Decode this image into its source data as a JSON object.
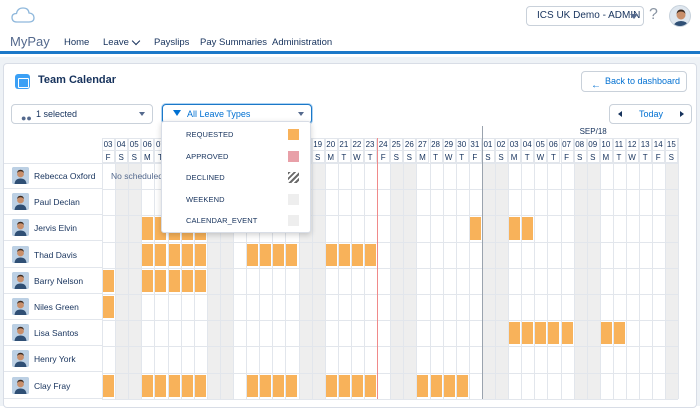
{
  "topbar": {
    "org_selector": "ICS UK Demo - ADMIN",
    "help": "?"
  },
  "navbar": {
    "brand": "MyPay",
    "items": [
      "Home",
      "Leave",
      "Payslips",
      "Pay Summaries",
      "Administration"
    ]
  },
  "card": {
    "title": "Team Calendar",
    "back_button": "Back to dashboard",
    "people_filter": "1 selected",
    "leave_filter": "All Leave Types",
    "today_button": "Today"
  },
  "calendar": {
    "month_label": "SEP/18",
    "days": [
      {
        "d": "03",
        "w": "F"
      },
      {
        "d": "04",
        "w": "S"
      },
      {
        "d": "05",
        "w": "S"
      },
      {
        "d": "06",
        "w": "M"
      },
      {
        "d": "07",
        "w": "T"
      },
      {
        "d": "08",
        "w": "W"
      },
      {
        "d": "09",
        "w": "T"
      },
      {
        "d": "10",
        "w": "F"
      },
      {
        "d": "11",
        "w": "S"
      },
      {
        "d": "12",
        "w": "S"
      },
      {
        "d": "13",
        "w": "M"
      },
      {
        "d": "14",
        "w": "T"
      },
      {
        "d": "15",
        "w": "W"
      },
      {
        "d": "16",
        "w": "T"
      },
      {
        "d": "17",
        "w": "F"
      },
      {
        "d": "18",
        "w": "S"
      },
      {
        "d": "19",
        "w": "S"
      },
      {
        "d": "20",
        "w": "M"
      },
      {
        "d": "21",
        "w": "T"
      },
      {
        "d": "22",
        "w": "W"
      },
      {
        "d": "23",
        "w": "T"
      },
      {
        "d": "24",
        "w": "F"
      },
      {
        "d": "25",
        "w": "S"
      },
      {
        "d": "26",
        "w": "S"
      },
      {
        "d": "27",
        "w": "M"
      },
      {
        "d": "28",
        "w": "T"
      },
      {
        "d": "29",
        "w": "W"
      },
      {
        "d": "30",
        "w": "T"
      },
      {
        "d": "31",
        "w": "F"
      },
      {
        "d": "01",
        "w": "S"
      },
      {
        "d": "02",
        "w": "S"
      },
      {
        "d": "03",
        "w": "M"
      },
      {
        "d": "04",
        "w": "T"
      },
      {
        "d": "05",
        "w": "W"
      },
      {
        "d": "06",
        "w": "T"
      },
      {
        "d": "07",
        "w": "F"
      },
      {
        "d": "08",
        "w": "S"
      },
      {
        "d": "09",
        "w": "S"
      },
      {
        "d": "10",
        "w": "M"
      },
      {
        "d": "11",
        "w": "T"
      },
      {
        "d": "12",
        "w": "W"
      },
      {
        "d": "13",
        "w": "T"
      },
      {
        "d": "14",
        "w": "F"
      },
      {
        "d": "15",
        "w": "S"
      }
    ],
    "employees": [
      {
        "name": "Rebecca Oxford",
        "leave": []
      },
      {
        "name": "Paul Declan",
        "leave": []
      },
      {
        "name": "Jervis Elvin",
        "leave": [
          3,
          4,
          5,
          6,
          7,
          28,
          31,
          32
        ]
      },
      {
        "name": "Thad Davis",
        "leave": [
          3,
          4,
          5,
          6,
          7,
          11,
          12,
          13,
          14,
          17,
          18,
          19,
          20
        ]
      },
      {
        "name": "Barry Nelson",
        "leave": [
          0,
          3,
          4,
          5,
          6,
          7
        ]
      },
      {
        "name": "Niles Green",
        "leave": [
          0
        ]
      },
      {
        "name": "Lisa Santos",
        "leave": [
          31,
          32,
          33,
          34,
          35,
          38,
          39
        ]
      },
      {
        "name": "Henry York",
        "leave": []
      },
      {
        "name": "Clay Fray",
        "leave": [
          0,
          3,
          4,
          5,
          6,
          7,
          11,
          12,
          13,
          14,
          17,
          18,
          19,
          20,
          24,
          25,
          26,
          27
        ]
      }
    ],
    "no_schedule_text": "No scheduled"
  },
  "leave_types": [
    {
      "label": "REQUESTED",
      "color": "#f8b25a"
    },
    {
      "label": "APPROVED",
      "color": "#e8a0a8"
    },
    {
      "label": "DECLINED",
      "color": "#6b6b6b"
    },
    {
      "label": "WEEKEND",
      "color": "#eeeeee"
    },
    {
      "label": "CALENDAR_EVENT",
      "color": "#eeeeee"
    }
  ]
}
